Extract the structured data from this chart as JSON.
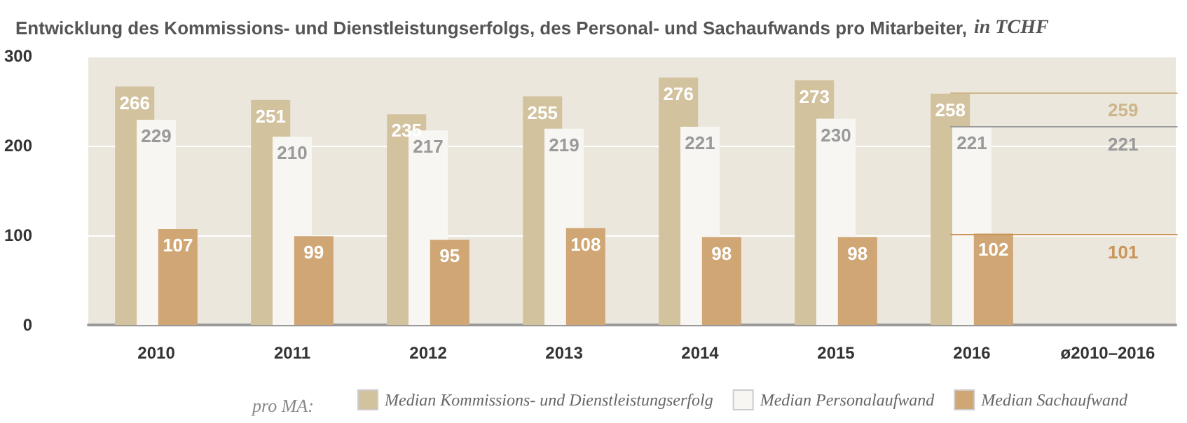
{
  "chart_data": {
    "type": "bar",
    "title": "Entwicklung des Kommissions- und Dienstleistungserfolgs, des Personal- und Sachaufwands pro Mitarbeiter,",
    "subtitle": "in TCHF",
    "categories": [
      "2010",
      "2011",
      "2012",
      "2013",
      "2014",
      "2015",
      "2016",
      "ø2010–2016"
    ],
    "series": [
      {
        "name": "Median Kommissions- und Dienstleistungserfolg",
        "color": "#d3c29e",
        "values": [
          266,
          251,
          235,
          255,
          276,
          273,
          258,
          null
        ]
      },
      {
        "name": "Median Personalaufwand",
        "color": "#f7f6f2",
        "values": [
          229,
          210,
          217,
          219,
          221,
          230,
          221,
          null
        ]
      },
      {
        "name": "Median Sachaufwand",
        "color": "#cfa674",
        "values": [
          107,
          99,
          95,
          108,
          98,
          98,
          102,
          null
        ]
      }
    ],
    "ref_lines": [
      {
        "axis": "y",
        "value": 259,
        "label": "259",
        "color": "#cdb68c"
      },
      {
        "axis": "y",
        "value": 221,
        "label": "221",
        "color": "#9a9a9a"
      },
      {
        "axis": "y",
        "value": 101,
        "label": "101",
        "color": "#c9965a"
      }
    ],
    "legend_title": "pro MA:",
    "legend": "bottom",
    "data_labels": true,
    "grid": "y",
    "ylim": [
      0,
      300
    ],
    "yticks": [
      0,
      100,
      200,
      300
    ]
  }
}
